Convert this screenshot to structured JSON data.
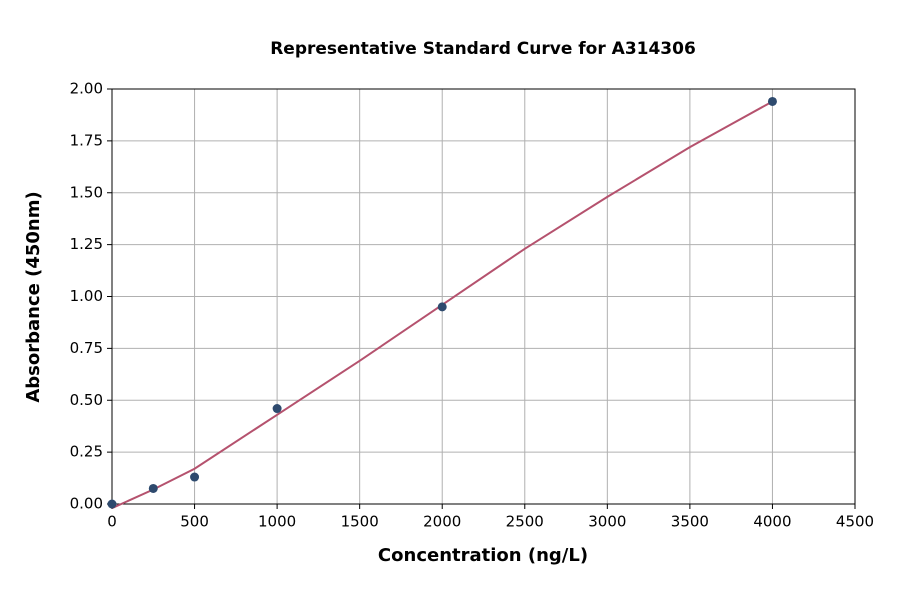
{
  "chart_data": {
    "type": "scatter",
    "title": "Representative Standard Curve for A314306",
    "x_label": "Concentration (ng/L)",
    "y_label": "Absorbance (450nm)",
    "xlim": [
      0,
      4500
    ],
    "xticks": [
      0,
      500,
      1000,
      1500,
      2000,
      2500,
      3000,
      3500,
      4000,
      4500
    ],
    "ylim": [
      0,
      2
    ],
    "yticks": [
      {
        "value": 0,
        "label": "0.00"
      },
      {
        "value": 0.25,
        "label": "0.25"
      },
      {
        "value": 0.5,
        "label": "0.50"
      },
      {
        "value": 0.75,
        "label": "0.75"
      },
      {
        "value": 1,
        "label": "1.00"
      },
      {
        "value": 1.25,
        "label": "1.25"
      },
      {
        "value": 1.5,
        "label": "1.50"
      },
      {
        "value": 1.75,
        "label": "1.75"
      },
      {
        "value": 2,
        "label": "2.00"
      }
    ],
    "grid": true,
    "series": [
      {
        "type": "line",
        "color": "#b5526e",
        "x": [
          0,
          250,
          500,
          1000,
          1500,
          2000,
          2500,
          3000,
          3500,
          4000
        ],
        "values": [
          -0.02,
          0.07,
          0.17,
          0.43,
          0.69,
          0.96,
          1.23,
          1.48,
          1.72,
          1.94
        ]
      },
      {
        "type": "scatter",
        "color": "#2e4a6e",
        "x": [
          0,
          250,
          500,
          1000,
          2000,
          4000
        ],
        "values": [
          0,
          0.075,
          0.13,
          0.46,
          0.95,
          1.94
        ]
      }
    ]
  }
}
